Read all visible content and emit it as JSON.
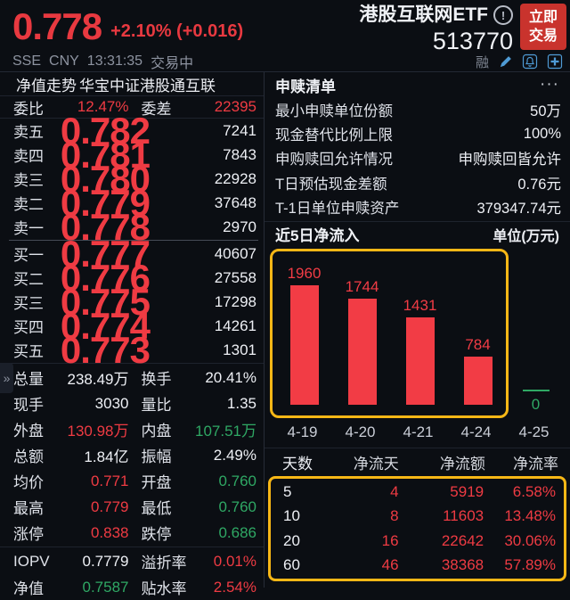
{
  "header": {
    "price": "0.778",
    "change": "+2.10% (+0.016)",
    "name": "港股互联网ETF",
    "info_mark": "!",
    "code": "513770",
    "trade_line1": "立即",
    "trade_line2": "交易",
    "exchange": "SSE",
    "currency": "CNY",
    "time": "13:31:35",
    "status": "交易中",
    "margin_flag": "融"
  },
  "left": {
    "tab1": "净值走势",
    "tab2": "华宝中证港股通互联",
    "weibi": {
      "l1": "委比",
      "v1": "12.47%",
      "l2": "委差",
      "v2": "22395"
    },
    "asks": [
      {
        "label": "卖五",
        "price": "0.782",
        "volume": "7241"
      },
      {
        "label": "卖四",
        "price": "0.781",
        "volume": "7843"
      },
      {
        "label": "卖三",
        "price": "0.780",
        "volume": "22928"
      },
      {
        "label": "卖二",
        "price": "0.779",
        "volume": "37648"
      },
      {
        "label": "卖一",
        "price": "0.778",
        "volume": "2970"
      }
    ],
    "bids": [
      {
        "label": "买一",
        "price": "0.777",
        "volume": "40607"
      },
      {
        "label": "买二",
        "price": "0.776",
        "volume": "27558"
      },
      {
        "label": "买三",
        "price": "0.775",
        "volume": "17298"
      },
      {
        "label": "买四",
        "price": "0.774",
        "volume": "14261"
      },
      {
        "label": "买五",
        "price": "0.773",
        "volume": "1301"
      }
    ],
    "stats": [
      {
        "l1": "总量",
        "v1": "238.49万",
        "l2": "换手",
        "v2": "20.41%"
      },
      {
        "l1": "现手",
        "v1": "3030",
        "l2": "量比",
        "v2": "1.35"
      },
      {
        "l1": "外盘",
        "v1": "130.98万",
        "l2": "内盘",
        "v2": "107.51万"
      },
      {
        "l1": "总额",
        "v1": "1.84亿",
        "l2": "振幅",
        "v2": "2.49%"
      },
      {
        "l1": "均价",
        "v1": "0.771",
        "l2": "开盘",
        "v2": "0.760"
      },
      {
        "l1": "最高",
        "v1": "0.779",
        "l2": "最低",
        "v2": "0.760"
      },
      {
        "l1": "涨停",
        "v1": "0.838",
        "l2": "跌停",
        "v2": "0.686"
      },
      {
        "l1": "IOPV",
        "v1": "0.7779",
        "l2": "溢折率",
        "v2": "0.01%"
      },
      {
        "l1": "净值",
        "v1": "0.7587",
        "l2": "贴水率",
        "v2": "2.54%"
      }
    ],
    "expand": "»"
  },
  "right": {
    "title": "申赎清单",
    "more": "···",
    "rows": [
      {
        "label": "最小申赎单位份额",
        "value": "50万"
      },
      {
        "label": "现金替代比例上限",
        "value": "100%"
      },
      {
        "label": "申购赎回允许情况",
        "value": "申购赎回皆允许"
      },
      {
        "label": "T日预估现金差额",
        "value": "0.76元"
      },
      {
        "label": "T-1日单位申赎资产",
        "value": "379347.74元"
      }
    ],
    "flow_title": "近5日净流入",
    "flow_unit": "单位(万元)",
    "table": {
      "h1": "天数",
      "h2": "净流天",
      "h3": "净流额",
      "h4": "净流率",
      "rows": [
        [
          "5",
          "4",
          "5919",
          "6.58%"
        ],
        [
          "10",
          "8",
          "11603",
          "13.48%"
        ],
        [
          "20",
          "16",
          "22642",
          "30.06%"
        ],
        [
          "60",
          "46",
          "38368",
          "57.89%"
        ]
      ]
    }
  },
  "chart_data": {
    "type": "bar",
    "title": "近5日净流入",
    "ylabel": "净流入(万元)",
    "categories": [
      "4-19",
      "4-20",
      "4-21",
      "4-24",
      "4-25"
    ],
    "values": [
      1960,
      1744,
      1431,
      784,
      0
    ],
    "value_labels": [
      "1960",
      "1744",
      "1431",
      "784",
      "0"
    ],
    "ylim": [
      0,
      2100
    ],
    "grid": false,
    "legend": "none",
    "bar_color": "#f23c45",
    "zero_bar_color": "#2fa864",
    "highlight": "yellow rounded box outlines bars 4-19 through 4-24"
  },
  "colors": {
    "up_red": "#ef3b43",
    "down_green": "#2fa864",
    "highlight_yellow": "#f7b716",
    "button_red": "#c9332d",
    "icon_blue": "#4f9bd5",
    "background": "#0b0e13"
  }
}
